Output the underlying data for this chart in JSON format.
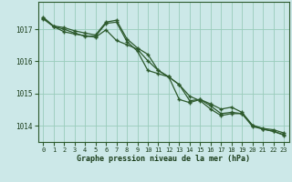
{
  "title": "",
  "xlabel": "Graphe pression niveau de la mer (hPa)",
  "ylabel": "",
  "bg_color": "#cce8e8",
  "line_color": "#2d5a2d",
  "grid_color": "#99ccbb",
  "axis_color": "#2d5a2d",
  "tick_color": "#1a3d1a",
  "xlim": [
    -0.5,
    23.5
  ],
  "ylim": [
    1013.5,
    1017.85
  ],
  "yticks": [
    1014,
    1015,
    1016,
    1017
  ],
  "xticks": [
    0,
    1,
    2,
    3,
    4,
    5,
    6,
    7,
    8,
    9,
    10,
    11,
    12,
    13,
    14,
    15,
    16,
    17,
    18,
    19,
    20,
    21,
    22,
    23
  ],
  "series1": [
    1017.35,
    1017.1,
    1017.05,
    1016.95,
    1016.88,
    1016.82,
    1017.22,
    1017.28,
    1016.7,
    1016.42,
    1016.22,
    1015.72,
    1015.52,
    1014.82,
    1014.72,
    1014.82,
    1014.68,
    1014.52,
    1014.58,
    1014.42,
    1014.02,
    1013.92,
    1013.88,
    1013.78
  ],
  "series2": [
    1017.32,
    1017.08,
    1017.0,
    1016.88,
    1016.78,
    1016.78,
    1017.18,
    1017.22,
    1016.62,
    1016.32,
    1015.72,
    1015.62,
    1015.52,
    1015.28,
    1014.78,
    1014.82,
    1014.62,
    1014.38,
    1014.42,
    1014.38,
    1014.02,
    1013.9,
    1013.83,
    1013.73
  ],
  "series3": [
    1017.38,
    1017.08,
    1016.92,
    1016.85,
    1016.8,
    1016.75,
    1016.98,
    1016.65,
    1016.52,
    1016.38,
    1016.02,
    1015.72,
    1015.52,
    1015.28,
    1014.92,
    1014.78,
    1014.52,
    1014.32,
    1014.38,
    1014.38,
    1013.98,
    1013.9,
    1013.83,
    1013.71
  ],
  "marker": "+",
  "markersize": 3.5,
  "linewidth": 0.9
}
